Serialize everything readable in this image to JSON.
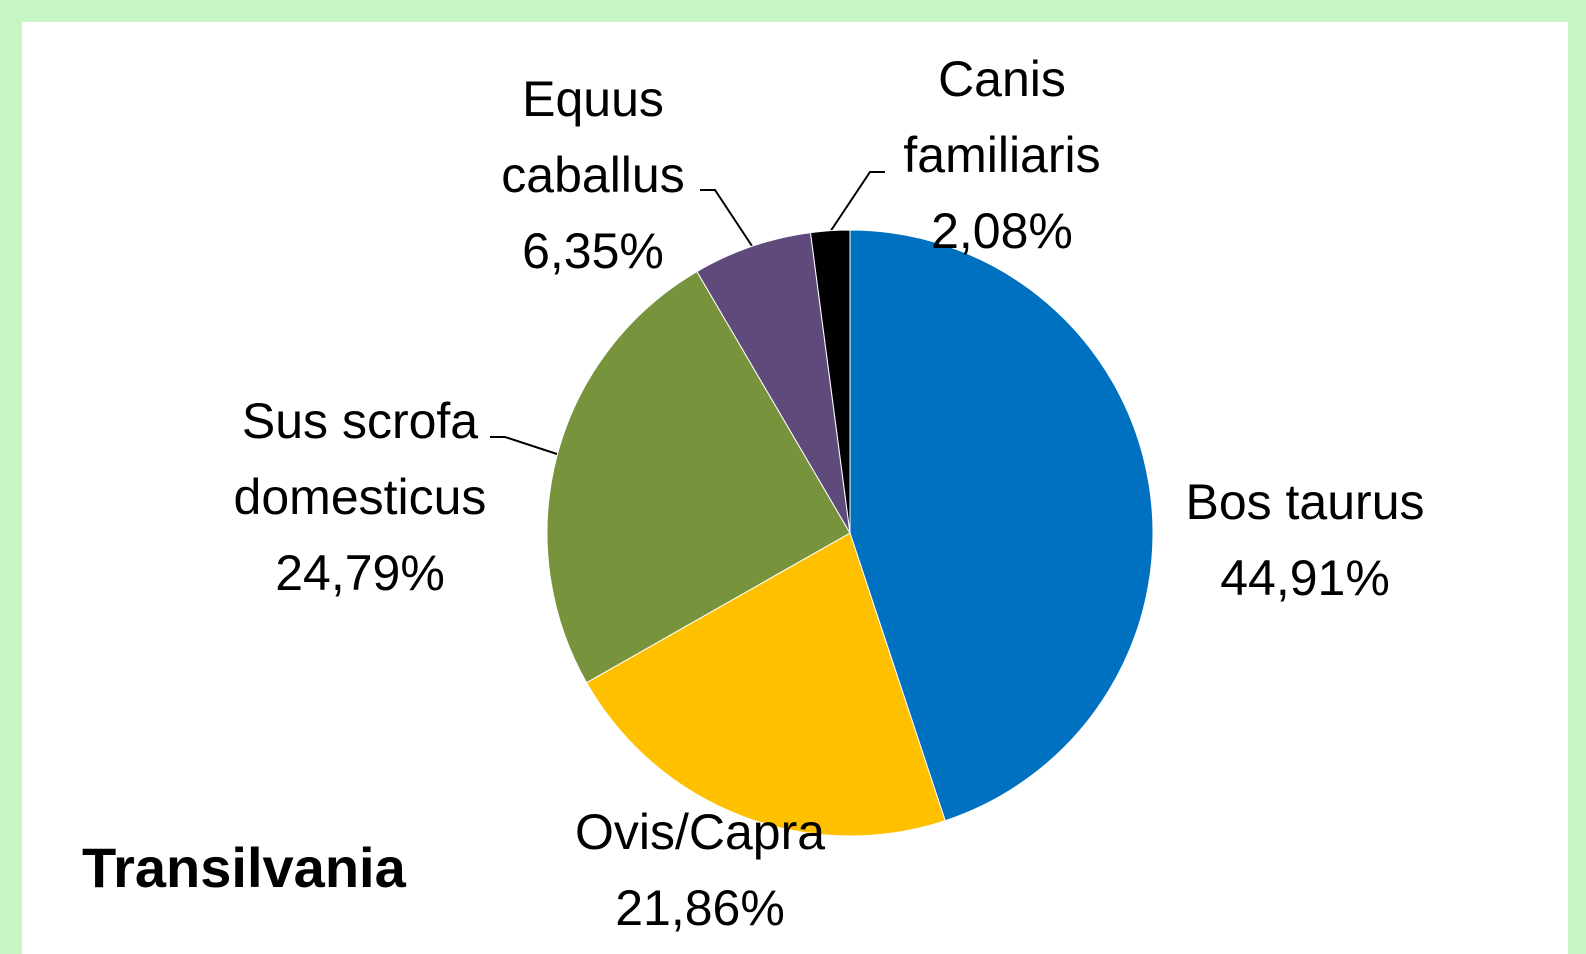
{
  "chart_data": {
    "type": "pie",
    "title": "Transilvania",
    "categories": [
      "Bos taurus",
      "Ovis/Capra",
      "Sus scrofa domesticus",
      "Equus caballus",
      "Canis familiaris"
    ],
    "values": [
      44.91,
      21.86,
      24.79,
      6.35,
      2.08
    ],
    "value_labels": [
      "44,91%",
      "21,86%",
      "24,79%",
      "6,35%",
      "2,08%"
    ],
    "colors": [
      "#0070c0",
      "#ffc000",
      "#77933c",
      "#604a7b",
      "#000000"
    ]
  }
}
